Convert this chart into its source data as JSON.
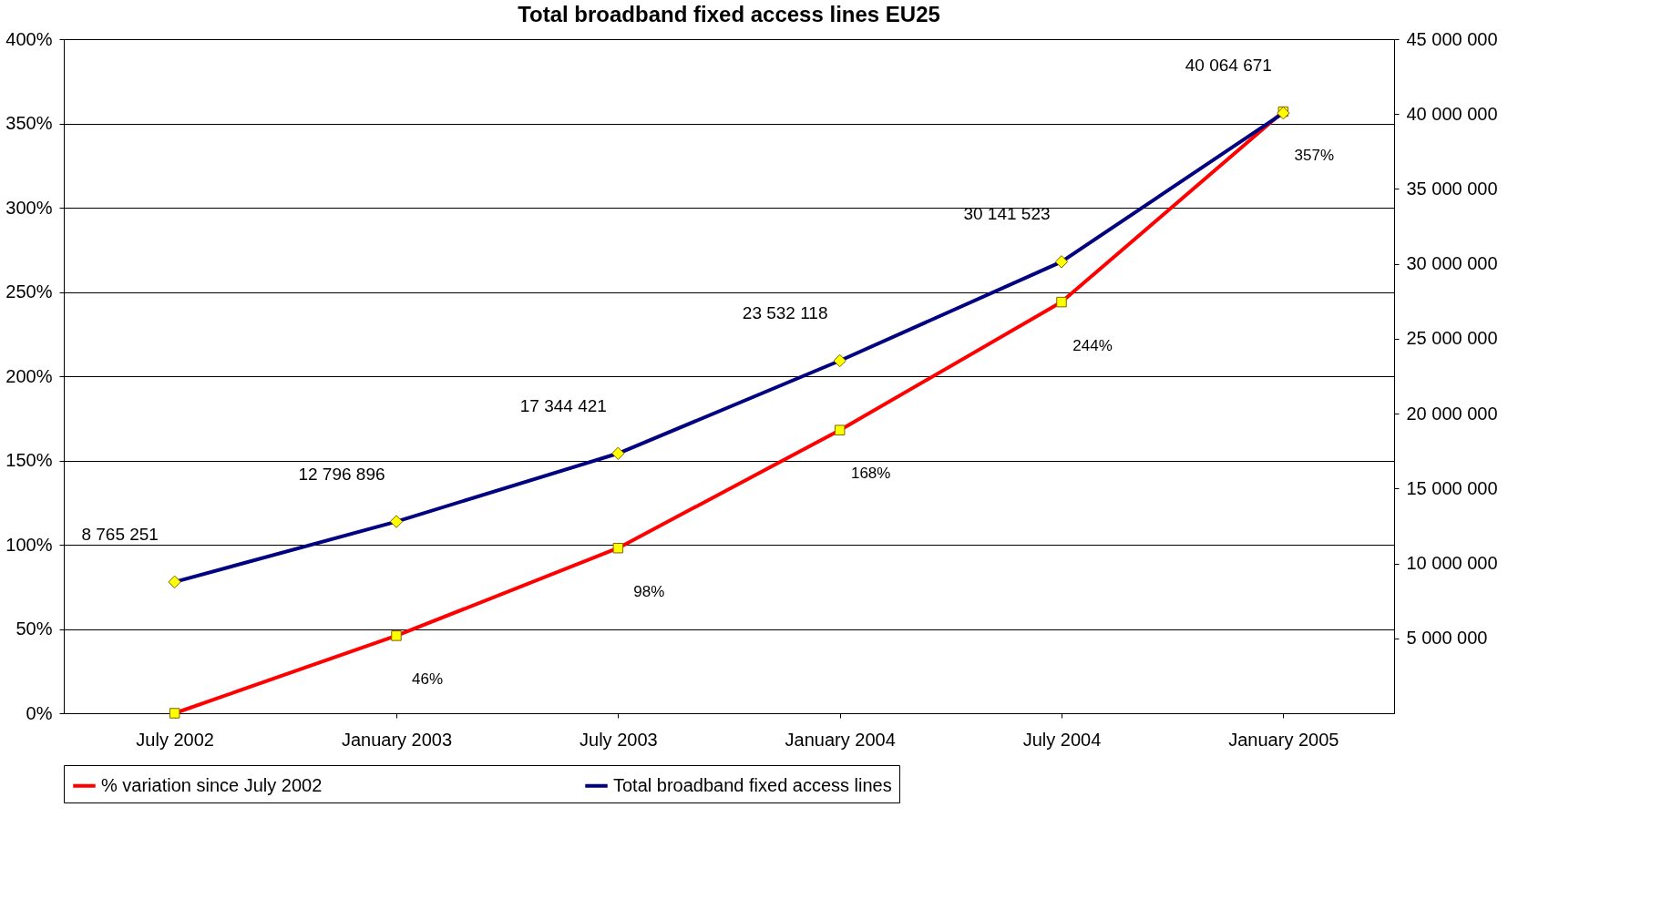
{
  "chart_data": {
    "type": "line",
    "title": "Total broadband fixed access lines          EU25",
    "categories": [
      "July 2002",
      "January 2003",
      "July 2003",
      "January 2004",
      "July 2004",
      "January 2005"
    ],
    "series": [
      {
        "name": "% variation since July 2002",
        "color": "#ff0000",
        "marker": "square",
        "values": [
          0,
          46,
          98,
          168,
          244,
          357
        ],
        "value_labels": [
          null,
          "46%",
          "98%",
          "168%",
          "244%",
          "357%"
        ]
      },
      {
        "name": "Total broadband fixed access lines",
        "color": "#000080",
        "marker": "diamond",
        "axis": "y2",
        "values": [
          8765251,
          12796896,
          17344421,
          23532118,
          30141523,
          40064671
        ],
        "value_labels": [
          "8 765 251",
          "12 796 896",
          "17 344 421",
          "23 532 118",
          "30 141 523",
          "40 064 671"
        ]
      }
    ],
    "ylim": [
      0,
      400
    ],
    "yticks": [
      {
        "value": 0,
        "label": "0%"
      },
      {
        "value": 50,
        "label": "50%"
      },
      {
        "value": 100,
        "label": "100%"
      },
      {
        "value": 150,
        "label": "150%"
      },
      {
        "value": 200,
        "label": "200%"
      },
      {
        "value": 250,
        "label": "250%"
      },
      {
        "value": 300,
        "label": "300%"
      },
      {
        "value": 350,
        "label": "350%"
      },
      {
        "value": 400,
        "label": "400%"
      }
    ],
    "y2lim": [
      0,
      45000000
    ],
    "y2ticks": [
      {
        "value": 5000000,
        "label": "5 000 000"
      },
      {
        "value": 10000000,
        "label": "10 000 000"
      },
      {
        "value": 15000000,
        "label": "15 000 000"
      },
      {
        "value": 20000000,
        "label": "20 000 000"
      },
      {
        "value": 25000000,
        "label": "25 000 000"
      },
      {
        "value": 30000000,
        "label": "30 000 000"
      },
      {
        "value": 35000000,
        "label": "35 000 000"
      },
      {
        "value": 40000000,
        "label": "40 000 000"
      },
      {
        "value": 45000000,
        "label": "45 000 000"
      }
    ],
    "grid": "y",
    "legend": "bottom",
    "line_style": "solid"
  }
}
